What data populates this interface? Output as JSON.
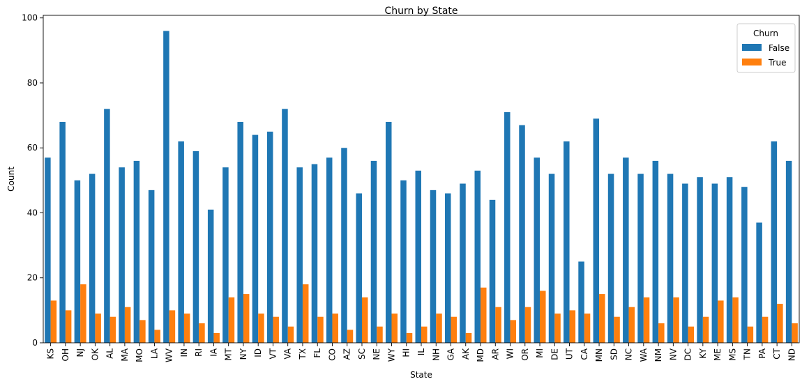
{
  "chart_data": {
    "type": "bar",
    "title": "Churn by State",
    "xlabel": "State",
    "ylabel": "Count",
    "ylim": [
      0,
      100.8
    ],
    "yticks": [
      0,
      20,
      40,
      60,
      80,
      100
    ],
    "grid": false,
    "legend": {
      "title": "Churn",
      "placement": "top-right"
    },
    "categories": [
      "KS",
      "OH",
      "NJ",
      "OK",
      "AL",
      "MA",
      "MO",
      "LA",
      "WV",
      "IN",
      "RI",
      "IA",
      "MT",
      "NY",
      "ID",
      "VT",
      "VA",
      "TX",
      "FL",
      "CO",
      "AZ",
      "SC",
      "NE",
      "WY",
      "HI",
      "IL",
      "NH",
      "GA",
      "AK",
      "MD",
      "AR",
      "WI",
      "OR",
      "MI",
      "DE",
      "UT",
      "CA",
      "MN",
      "SD",
      "NC",
      "WA",
      "NM",
      "NV",
      "DC",
      "KY",
      "ME",
      "MS",
      "TN",
      "PA",
      "CT",
      "ND"
    ],
    "series": [
      {
        "name": "False",
        "color": "#1f77b4",
        "values": [
          57,
          68,
          50,
          52,
          72,
          54,
          56,
          47,
          96,
          62,
          59,
          41,
          54,
          68,
          64,
          65,
          72,
          54,
          55,
          57,
          60,
          46,
          56,
          68,
          50,
          53,
          47,
          46,
          49,
          53,
          44,
          71,
          67,
          57,
          52,
          62,
          25,
          69,
          52,
          57,
          52,
          56,
          52,
          49,
          51,
          49,
          51,
          48,
          37,
          62,
          56
        ]
      },
      {
        "name": "True",
        "color": "#ff7f0e",
        "values": [
          13,
          10,
          18,
          9,
          8,
          11,
          7,
          4,
          10,
          9,
          6,
          3,
          14,
          15,
          9,
          8,
          5,
          18,
          8,
          9,
          4,
          14,
          5,
          9,
          3,
          5,
          9,
          8,
          3,
          17,
          11,
          7,
          11,
          16,
          9,
          10,
          9,
          15,
          8,
          11,
          14,
          6,
          14,
          5,
          8,
          13,
          14,
          5,
          8,
          12,
          6
        ]
      }
    ]
  }
}
